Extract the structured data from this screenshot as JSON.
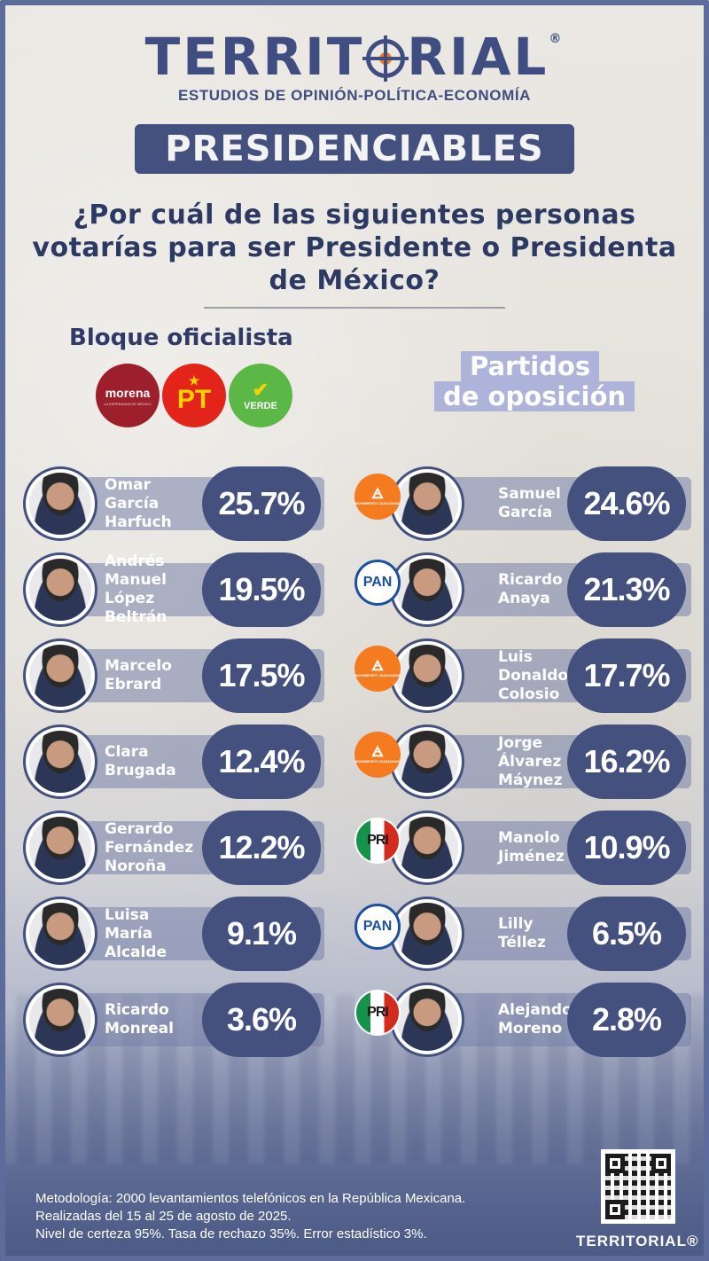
{
  "header": {
    "brand": "TERRIT",
    "brand_tail": "RIAL",
    "registered": "®",
    "tagline": "ESTUDIOS DE OPINIÓN-POLÍTICA-ECONOMÍA",
    "banner": "PRESIDENCIABLES",
    "question": "¿Por cuál de las siguientes personas votarías  para ser Presidente o Presidenta de México?"
  },
  "left_block": {
    "title": "Bloque oficialista",
    "logos": [
      {
        "name": "morena",
        "label": "morena",
        "sub": "LA ESPERANZA DE MÉXICO",
        "color": "#9e1f2c"
      },
      {
        "name": "pt",
        "label": "PT",
        "color": "#e3241b"
      },
      {
        "name": "verde",
        "label": "VERDE",
        "color": "#5cb846"
      }
    ]
  },
  "right_block": {
    "title_line1": "Partidos",
    "title_line2": "de oposición"
  },
  "party_labels": {
    "mc": "MOVIMIENTO CIUDADANO",
    "pan": "PAN",
    "pri": "PRI"
  },
  "chart_data": [
    {
      "type": "bar",
      "title": "Bloque oficialista",
      "categories": [
        "Omar García Harfuch",
        "Andrés Manuel López Beltrán",
        "Marcelo Ebrard",
        "Clara Brugada",
        "Gerardo Fernández Noroña",
        "Luisa María Alcalde",
        "Ricardo Monreal"
      ],
      "name_lines": [
        "Omar\nGarcía\nHarfuch",
        "Andrés\nManuel\nLópez\nBeltrán",
        "Marcelo\nEbrard",
        "Clara\nBrugada",
        "Gerardo\nFernández\nNoroña",
        "Luisa\nMaría\nAlcalde",
        "Ricardo\nMonreal"
      ],
      "values": [
        25.7,
        19.5,
        17.5,
        12.4,
        12.2,
        9.1,
        3.6
      ],
      "labels": [
        "25.7%",
        "19.5%",
        "17.5%",
        "12.4%",
        "12.2%",
        "9.1%",
        "3.6%"
      ]
    },
    {
      "type": "bar",
      "title": "Partidos de oposición",
      "categories": [
        "Samuel García",
        "Ricardo Anaya",
        "Luis Donaldo Colosio",
        "Jorge Álvarez Máynez",
        "Manolo Jiménez",
        "Lilly Téllez",
        "Alejando Moreno"
      ],
      "name_lines": [
        "Samuel\nGarcía",
        "Ricardo\nAnaya",
        "Luis\nDonaldo\nColosio",
        "Jorge\nÁlvarez\nMáynez",
        "Manolo\nJiménez",
        "Lilly\nTéllez",
        "Alejando\nMoreno"
      ],
      "parties": [
        "mc",
        "pan",
        "mc",
        "mc",
        "pri",
        "pan",
        "pri"
      ],
      "values": [
        24.6,
        21.3,
        17.7,
        16.2,
        10.9,
        6.5,
        2.8
      ],
      "labels": [
        "24.6%",
        "21.3%",
        "17.7%",
        "16.2%",
        "10.9%",
        "6.5%",
        "2.8%"
      ]
    }
  ],
  "footer": {
    "method_line1": "Metodología: 2000 levantamientos telefónicos  en la República Mexicana.",
    "method_line2": "Realizadas del 15 al 25 de agosto de 2025.",
    "method_line3": "Nivel de certeza 95%. Tasa de rechazo 35%. Error estadístico 3%.",
    "brand": "TERRITORIAL",
    "registered": "®"
  },
  "colors": {
    "navy": "#44517f",
    "brand_text": "#3f4d80",
    "orange_accent": "#f07a1a"
  }
}
